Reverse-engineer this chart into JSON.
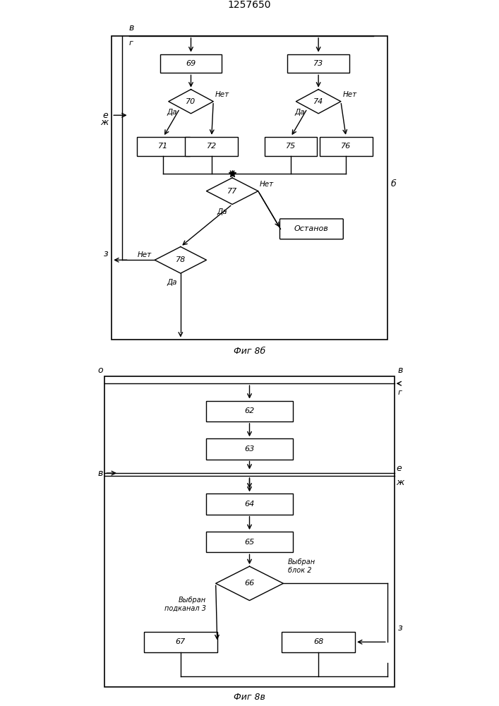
{
  "title": "1257650",
  "fig8b_label": "Фиг 8б",
  "fig8v_label": "Фиг 8в",
  "bg_color": "#ffffff",
  "line_color": "#000000",
  "font_size": 9,
  "small_font": 7.5
}
